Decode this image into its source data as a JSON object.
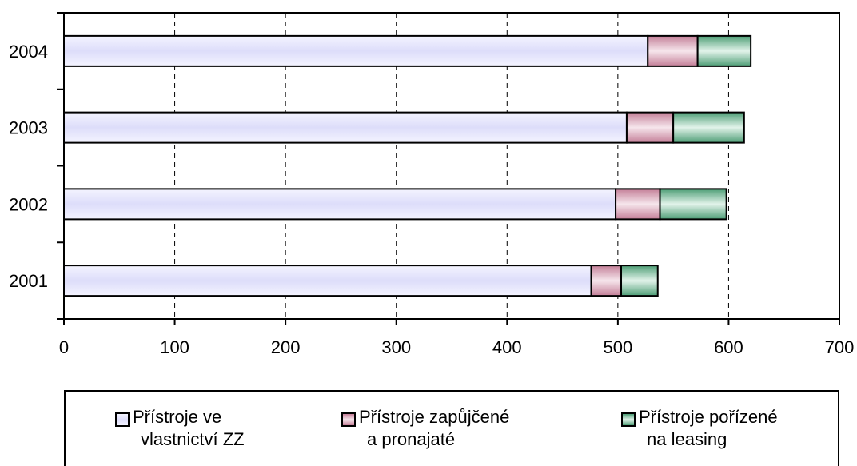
{
  "chart_data": {
    "type": "bar",
    "orientation": "horizontal",
    "stacked": true,
    "categories": [
      "2001",
      "2002",
      "2003",
      "2004"
    ],
    "series": [
      {
        "name": "Přístroje ve vlastnictví ZZ",
        "name_lines": [
          "Přístroje ve",
          "vlastnictví ZZ"
        ],
        "color": "#e6e6ff",
        "values": [
          476,
          498,
          508,
          527
        ]
      },
      {
        "name": "Přístroje zapůjčené a pronajaté",
        "name_lines": [
          "Přístroje zapůjčené",
          "a pronajaté"
        ],
        "color": "#a64d6e",
        "values": [
          27,
          40,
          42,
          45
        ]
      },
      {
        "name": "Přístroje pořízené na leasing",
        "name_lines": [
          "Přístroje pořízené",
          "na leasing"
        ],
        "color": "#5aa982",
        "values": [
          33,
          60,
          64,
          48
        ]
      }
    ],
    "xlim": [
      0,
      700
    ],
    "xticks": [
      "0",
      "100",
      "200",
      "300",
      "400",
      "500",
      "600",
      "700"
    ],
    "grid": "vertical dashed",
    "legend_position": "bottom"
  }
}
